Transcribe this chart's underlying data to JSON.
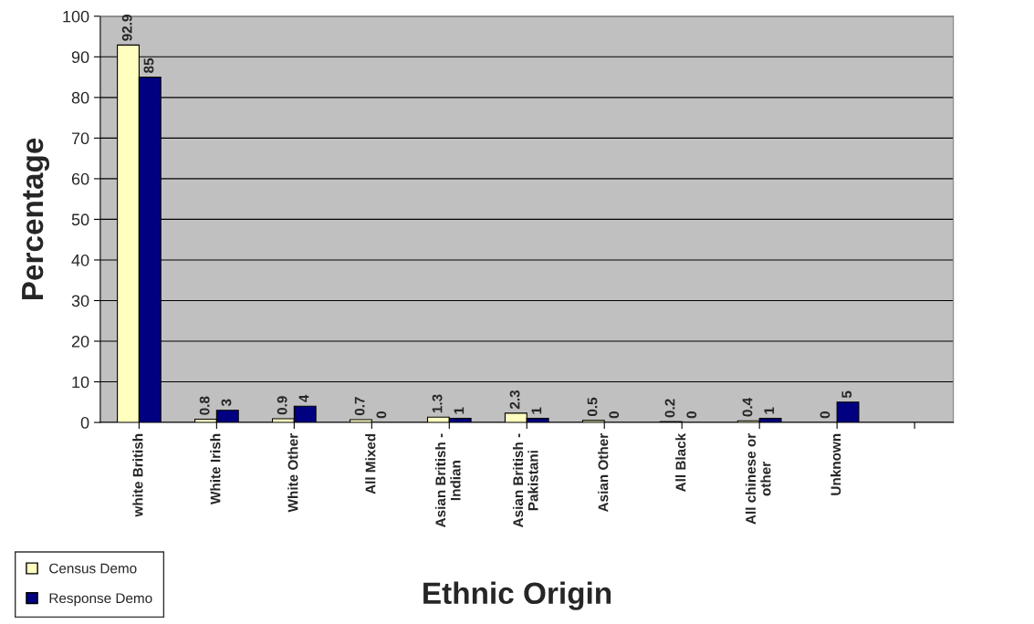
{
  "chart_data": {
    "type": "bar",
    "xlabel": "Ethnic Origin",
    "ylabel": "Percentage",
    "categories": [
      "white British",
      "White Irish",
      "White Other",
      "All Mixed",
      "Asian British -\nIndian",
      "Asian British -\nPakistani",
      "Asian Other",
      "All Black",
      "All chinese or\nother",
      "Unknown",
      null
    ],
    "series": [
      {
        "name": "Census Demo",
        "color": "#ffffc0",
        "values": [
          92.9,
          0.8,
          0.9,
          0.7,
          1.3,
          2.3,
          0.5,
          0.2,
          0.4,
          0,
          null
        ]
      },
      {
        "name": "Response Demo",
        "color": "#000080",
        "values": [
          85,
          3,
          4,
          0,
          1,
          1,
          0,
          0,
          1,
          5,
          null
        ]
      }
    ],
    "ylim": [
      0,
      100
    ],
    "yticks": [
      0,
      10,
      20,
      30,
      40,
      50,
      60,
      70,
      80,
      90,
      100
    ],
    "grid": "y",
    "legend": "bottom left",
    "data_labels": true
  }
}
